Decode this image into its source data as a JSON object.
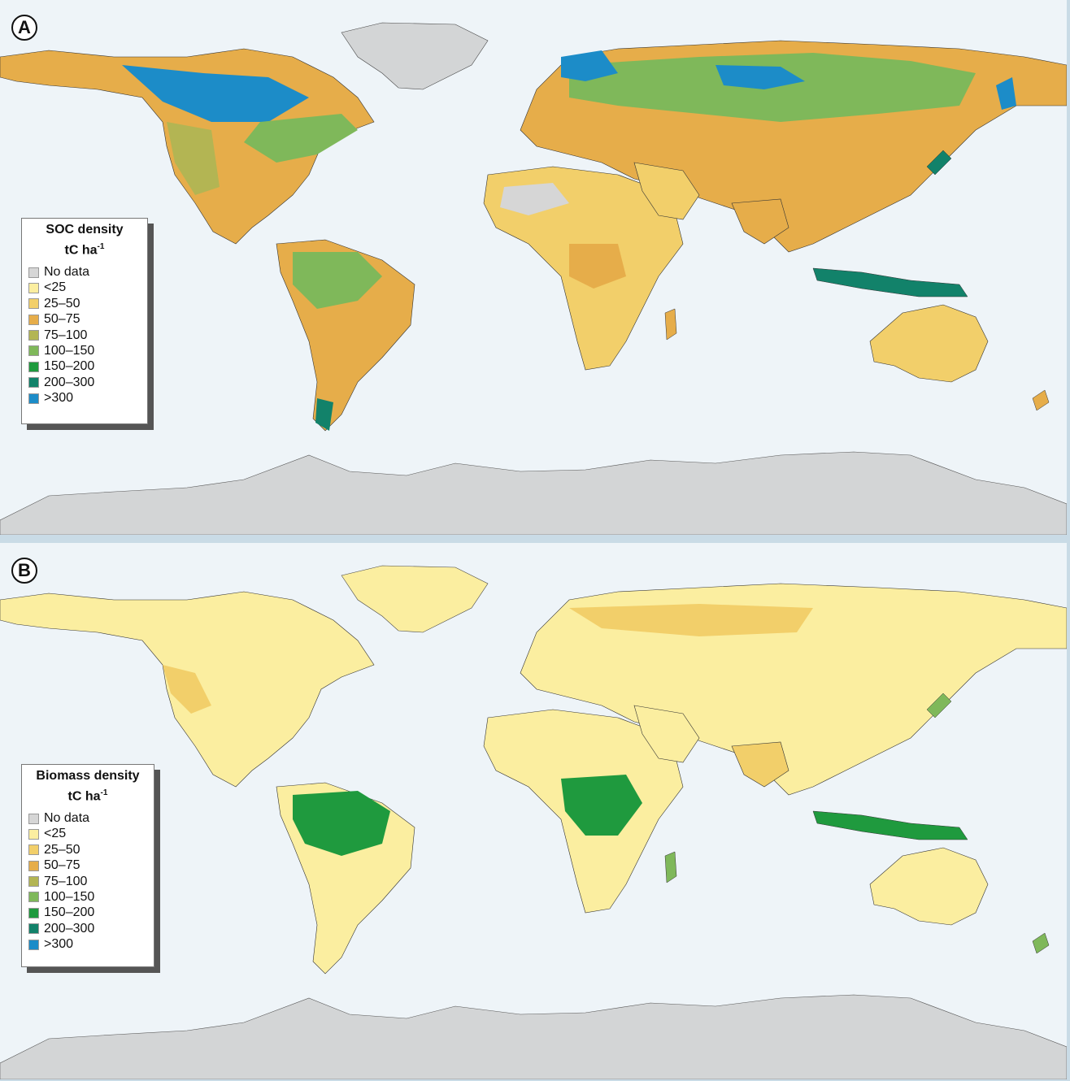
{
  "panels": [
    {
      "letter": "A",
      "legend": {
        "title": "SOC density",
        "unit_base": "tC ha",
        "unit_exp": "-1",
        "items": [
          {
            "label": "No data",
            "color": "#d6d6d6"
          },
          {
            "label": "<25",
            "color": "#fbeea0"
          },
          {
            "label": "25–50",
            "color": "#f2cf6a"
          },
          {
            "label": "50–75",
            "color": "#e6ad4a"
          },
          {
            "label": "75–100",
            "color": "#b3b553"
          },
          {
            "label": "100–150",
            "color": "#7fb85a"
          },
          {
            "label": "150–200",
            "color": "#1f9a3e"
          },
          {
            "label": "200–300",
            "color": "#12826a"
          },
          {
            "label": ">300",
            "color": "#1c8cc8"
          }
        ]
      }
    },
    {
      "letter": "B",
      "legend": {
        "title": "Biomass density",
        "unit_base": "tC ha",
        "unit_exp": "-1",
        "items": [
          {
            "label": "No data",
            "color": "#d6d6d6"
          },
          {
            "label": "<25",
            "color": "#fbeea0"
          },
          {
            "label": "25–50",
            "color": "#f2cf6a"
          },
          {
            "label": "50–75",
            "color": "#e6ad4a"
          },
          {
            "label": "75–100",
            "color": "#b3b553"
          },
          {
            "label": "100–150",
            "color": "#7fb85a"
          },
          {
            "label": "150–200",
            "color": "#1f9a3e"
          },
          {
            "label": "200–300",
            "color": "#12826a"
          },
          {
            "label": ">300",
            "color": "#1c8cc8"
          }
        ]
      }
    }
  ]
}
